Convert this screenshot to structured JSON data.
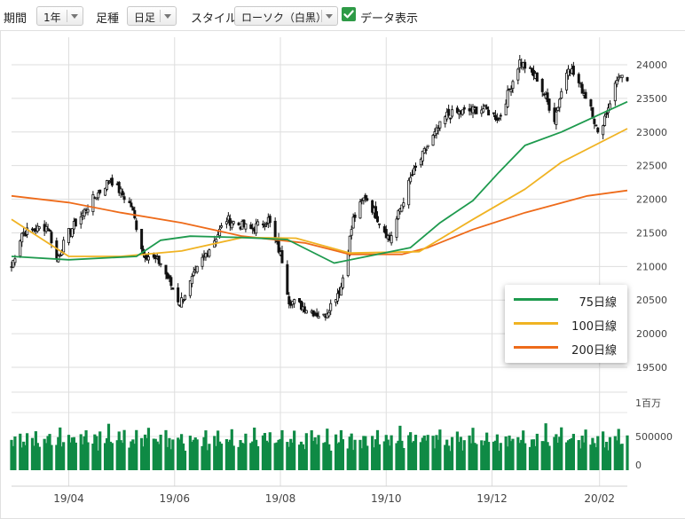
{
  "toolbar": {
    "period_label": "期間",
    "period_value": "1年",
    "candle_label": "足種",
    "candle_value": "日足",
    "style_label": "スタイル",
    "style_value": "ローソク（白黒）",
    "data_display_label": "データ表示",
    "data_display_checked": true
  },
  "chart_data": {
    "type": "candlestick",
    "x_ticks": [
      "19/04",
      "19/06",
      "19/08",
      "19/10",
      "19/12",
      "20/02"
    ],
    "price_axis": {
      "min": 19000,
      "max": 24000,
      "ticks": [
        24000,
        23500,
        23000,
        22500,
        22000,
        21500,
        21000,
        20500,
        20000,
        19500
      ]
    },
    "volume_axis": {
      "ticks": [
        "1百万",
        "500000",
        "0"
      ],
      "max": 1000000
    },
    "grid": true,
    "legend": {
      "placement": "bottom-right of price panel",
      "entries": [
        {
          "name": "75日線",
          "color": "#1e9a4e"
        },
        {
          "name": "100日線",
          "color": "#f0b323"
        },
        {
          "name": "200日線",
          "color": "#ee6b1a"
        }
      ]
    },
    "price_path": [
      {
        "d": "19/02/27",
        "c": 21000
      },
      {
        "d": "19/03/05",
        "c": 21500
      },
      {
        "d": "19/03/20",
        "c": 21600
      },
      {
        "d": "19/03/25",
        "c": 21100
      },
      {
        "d": "19/04/01",
        "c": 21500
      },
      {
        "d": "19/04/15",
        "c": 22000
      },
      {
        "d": "19/04/25",
        "c": 22300
      },
      {
        "d": "19/05/07",
        "c": 21900
      },
      {
        "d": "19/05/14",
        "c": 21200
      },
      {
        "d": "19/05/24",
        "c": 21050
      },
      {
        "d": "19/06/04",
        "c": 20450
      },
      {
        "d": "19/06/17",
        "c": 21100
      },
      {
        "d": "19/07/01",
        "c": 21700
      },
      {
        "d": "19/07/15",
        "c": 21550
      },
      {
        "d": "19/07/25",
        "c": 21700
      },
      {
        "d": "19/08/02",
        "c": 21100
      },
      {
        "d": "19/08/06",
        "c": 20500
      },
      {
        "d": "19/08/14",
        "c": 20400
      },
      {
        "d": "19/08/26",
        "c": 20250
      },
      {
        "d": "19/09/05",
        "c": 20700
      },
      {
        "d": "19/09/12",
        "c": 21700
      },
      {
        "d": "19/09/19",
        "c": 22050
      },
      {
        "d": "19/10/03",
        "c": 21400
      },
      {
        "d": "19/10/15",
        "c": 22300
      },
      {
        "d": "19/10/25",
        "c": 22800
      },
      {
        "d": "19/11/05",
        "c": 23250
      },
      {
        "d": "19/11/15",
        "c": 23300
      },
      {
        "d": "19/11/26",
        "c": 23350
      },
      {
        "d": "19/12/05",
        "c": 23200
      },
      {
        "d": "19/12/17",
        "c": 24050
      },
      {
        "d": "19/12/27",
        "c": 23800
      },
      {
        "d": "20/01/06",
        "c": 23200
      },
      {
        "d": "20/01/14",
        "c": 24000
      },
      {
        "d": "20/01/27",
        "c": 23400
      },
      {
        "d": "20/01/31",
        "c": 22950
      },
      {
        "d": "20/02/05",
        "c": 23300
      },
      {
        "d": "20/02/12",
        "c": 23850
      },
      {
        "d": "20/02/17",
        "c": 23700
      }
    ],
    "ma75": [
      {
        "d": "19/02/27",
        "v": 21150
      },
      {
        "d": "19/04/01",
        "v": 21100
      },
      {
        "d": "19/05/10",
        "v": 21150
      },
      {
        "d": "19/05/24",
        "v": 21390
      },
      {
        "d": "19/06/10",
        "v": 21450
      },
      {
        "d": "19/07/10",
        "v": 21430
      },
      {
        "d": "19/08/05",
        "v": 21400
      },
      {
        "d": "19/09/01",
        "v": 21050
      },
      {
        "d": "19/09/20",
        "v": 21150
      },
      {
        "d": "19/10/15",
        "v": 21280
      },
      {
        "d": "19/11/01",
        "v": 21650
      },
      {
        "d": "19/11/20",
        "v": 21980
      },
      {
        "d": "19/12/05",
        "v": 22400
      },
      {
        "d": "19/12/20",
        "v": 22800
      },
      {
        "d": "20/01/10",
        "v": 23000
      },
      {
        "d": "20/02/17",
        "v": 23450
      }
    ],
    "ma100": [
      {
        "d": "19/02/27",
        "v": 21700
      },
      {
        "d": "19/04/01",
        "v": 21150
      },
      {
        "d": "19/05/01",
        "v": 21150
      },
      {
        "d": "19/06/05",
        "v": 21230
      },
      {
        "d": "19/07/10",
        "v": 21430
      },
      {
        "d": "19/08/10",
        "v": 21420
      },
      {
        "d": "19/09/10",
        "v": 21200
      },
      {
        "d": "19/10/20",
        "v": 21220
      },
      {
        "d": "19/11/20",
        "v": 21700
      },
      {
        "d": "19/12/20",
        "v": 22150
      },
      {
        "d": "20/01/10",
        "v": 22550
      },
      {
        "d": "20/02/17",
        "v": 23050
      }
    ],
    "ma200": [
      {
        "d": "19/02/27",
        "v": 22050
      },
      {
        "d": "19/04/01",
        "v": 21950
      },
      {
        "d": "19/05/01",
        "v": 21800
      },
      {
        "d": "19/06/05",
        "v": 21650
      },
      {
        "d": "19/07/10",
        "v": 21450
      },
      {
        "d": "19/08/15",
        "v": 21350
      },
      {
        "d": "19/09/10",
        "v": 21180
      },
      {
        "d": "19/10/10",
        "v": 21180
      },
      {
        "d": "19/10/25",
        "v": 21280
      },
      {
        "d": "19/11/20",
        "v": 21550
      },
      {
        "d": "19/12/20",
        "v": 21800
      },
      {
        "d": "20/01/25",
        "v": 22050
      },
      {
        "d": "20/02/17",
        "v": 22130
      }
    ],
    "volume_levels": [
      0.45,
      0.35,
      0.55,
      0.6,
      0.4,
      0.5,
      0.35,
      0.55,
      0.5,
      0.45,
      0.65,
      0.45,
      0.35,
      0.55,
      0.4,
      0.5,
      0.6,
      0.45,
      0.4,
      0.5,
      0.65,
      0.35,
      0.45,
      0.55,
      0.4,
      0.6,
      0.5,
      0.45,
      0.55,
      0.4,
      0.5,
      0.7,
      0.45,
      0.4,
      0.55,
      0.5,
      0.35,
      0.6,
      0.45,
      0.5,
      0.75,
      0.5,
      0.4,
      0.55,
      0.6,
      0.45,
      0.5,
      0.65,
      0.4,
      0.5,
      0.55,
      0.45,
      0.6,
      0.5,
      0.35,
      0.55,
      0.5,
      0.7,
      0.45,
      0.5
    ]
  }
}
